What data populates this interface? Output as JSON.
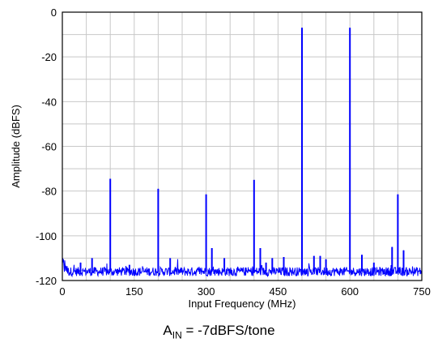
{
  "chart_data": {
    "type": "line",
    "xlabel": "Input Frequency (MHz)",
    "ylabel": "Amplitude (dBFS)",
    "xlim": [
      0,
      750
    ],
    "ylim": [
      -120,
      0
    ],
    "xticks": [
      0,
      150,
      300,
      450,
      600,
      750
    ],
    "yticks": [
      0,
      -20,
      -40,
      -60,
      -80,
      -100,
      -120
    ],
    "x_minor_step": 50,
    "y_minor_step": 10,
    "grid": true,
    "line_color": "#0000ff",
    "noise_floor_dbfs": -116,
    "spurs": [
      {
        "x": 100,
        "y": -74.5
      },
      {
        "x": 200,
        "y": -79
      },
      {
        "x": 300,
        "y": -81.5
      },
      {
        "x": 400,
        "y": -75
      },
      {
        "x": 500,
        "y": -7
      },
      {
        "x": 600,
        "y": -7
      },
      {
        "x": 700,
        "y": -81.5
      },
      {
        "x": 62,
        "y": -110
      },
      {
        "x": 225,
        "y": -110
      },
      {
        "x": 312,
        "y": -105.5
      },
      {
        "x": 338,
        "y": -110
      },
      {
        "x": 413,
        "y": -105.5
      },
      {
        "x": 438,
        "y": -110
      },
      {
        "x": 462,
        "y": -109.5
      },
      {
        "x": 525,
        "y": -109
      },
      {
        "x": 538,
        "y": -109
      },
      {
        "x": 550,
        "y": -110.5
      },
      {
        "x": 625,
        "y": -108.5
      },
      {
        "x": 688,
        "y": -105
      },
      {
        "x": 712,
        "y": -106.5
      },
      {
        "x": 38,
        "y": -112
      },
      {
        "x": 140,
        "y": -113
      },
      {
        "x": 425,
        "y": -112
      },
      {
        "x": 650,
        "y": -112
      }
    ]
  },
  "caption": {
    "main": "A",
    "sub": "IN",
    "rest": " = -7dBFS/tone"
  }
}
